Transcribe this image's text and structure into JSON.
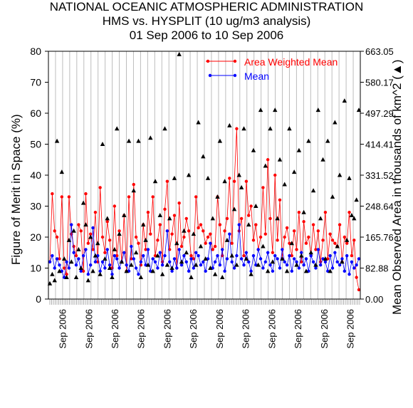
{
  "chart_data": {
    "type": "scatter",
    "title": "NATIONAL OCEANIC ATMOSPHERIC ADMINISTRATION",
    "subtitle": "HMS vs. HYSPLIT (10 ug/m3 analysis)",
    "date_range": "01 Sep 2006 to 10 Sep 2006",
    "ylabel": "Figure of Merit in Space (%)",
    "y2label": "Mean Observed Area in thousands of km^2 (",
    "y2label_marker": "▲",
    "y2label_close": ")",
    "ylim": [
      0,
      80
    ],
    "yticks": [
      0,
      10,
      20,
      30,
      40,
      50,
      60,
      70,
      80
    ],
    "y2ticks": [
      "0.00",
      "82.88",
      "165.76",
      "248.64",
      "331.52",
      "414.41",
      "497.29",
      "580.17",
      "663.05"
    ],
    "xtick_labels": [
      "Sep 2006",
      "Sep 2006",
      "Sep 2006",
      "Sep 2006",
      "Sep 2006",
      "Sep 2006",
      "Sep 2006",
      "Sep 2006",
      "Sep 2006",
      "Sep 2006",
      "Sep 2006",
      "Sep 2006"
    ],
    "grid": "vertical",
    "legend_position": "top-right",
    "series": [
      {
        "name": "Area Weighted Mean",
        "color": "#ff0000",
        "marker": "circle",
        "values": [
          12,
          34,
          22,
          20,
          13,
          33,
          10,
          8,
          33,
          21,
          17,
          14,
          24,
          22,
          9,
          34,
          18,
          21,
          16,
          28,
          12,
          36,
          20,
          15,
          25,
          19,
          10,
          30,
          14,
          22,
          12,
          27,
          9,
          33,
          13,
          37,
          20,
          18,
          11,
          24,
          16,
          28,
          21,
          33,
          14,
          19,
          24,
          12,
          29,
          38,
          16,
          21,
          27,
          10,
          31,
          17,
          20,
          26,
          22,
          14,
          13,
          33,
          23,
          24,
          22,
          18,
          20,
          21,
          16,
          17,
          33,
          24,
          14,
          22,
          26,
          39,
          18,
          38,
          55,
          22,
          26,
          14,
          38,
          27,
          30,
          19,
          24,
          16,
          20,
          36,
          21,
          45,
          26,
          15,
          40,
          19,
          32,
          13,
          20,
          23,
          18,
          14,
          22,
          16,
          28,
          12,
          25,
          18,
          20,
          14,
          24,
          16,
          22,
          12,
          19,
          28,
          13,
          21,
          19,
          18,
          17,
          24,
          12,
          20,
          18,
          28,
          14,
          19,
          7,
          3
        ]
      },
      {
        "name": "Mean",
        "color": "#0000ff",
        "marker": "circle",
        "values": [
          12,
          14,
          10,
          13,
          11,
          9,
          7,
          12,
          10,
          24,
          15,
          11,
          13,
          9,
          14,
          16,
          8,
          11,
          23,
          12,
          14,
          9,
          12,
          10,
          16,
          11,
          8,
          14,
          13,
          10,
          12,
          15,
          11,
          9,
          17,
          13,
          10,
          8,
          12,
          14,
          11,
          16,
          9,
          13,
          12,
          10,
          15,
          11,
          14,
          22,
          12,
          9,
          13,
          10,
          16,
          11,
          14,
          12,
          9,
          13,
          10,
          15,
          14,
          11,
          12,
          9,
          13,
          18,
          10,
          12,
          14,
          11,
          16,
          9,
          13,
          21,
          12,
          10,
          14,
          24,
          13,
          11,
          15,
          12,
          9,
          14,
          11,
          16,
          13,
          10,
          12,
          15,
          11,
          9,
          14,
          13,
          10,
          16,
          12,
          11,
          14,
          9,
          13,
          12,
          10,
          15,
          11,
          13,
          9,
          14,
          12,
          10,
          16,
          11,
          13,
          12,
          9,
          14,
          10,
          15,
          12,
          11,
          13,
          9,
          14,
          8,
          12,
          10,
          11,
          13
        ]
      },
      {
        "name": "Mean Observed Area",
        "color": "#000000",
        "marker": "triangle",
        "axis": "right",
        "values": [
          5,
          8,
          6,
          51,
          9,
          41,
          13,
          7,
          19,
          12,
          22,
          7,
          16,
          10,
          31,
          24,
          6,
          20,
          9,
          14,
          18,
          8,
          50,
          13,
          26,
          10,
          7,
          16,
          55,
          21,
          12,
          27,
          9,
          51,
          11,
          35,
          15,
          51,
          7,
          24,
          19,
          11,
          52,
          9,
          38,
          14,
          27,
          8,
          55,
          11,
          26,
          10,
          39,
          18,
          79,
          12,
          22,
          15,
          40,
          7,
          21,
          11,
          57,
          17,
          46,
          13,
          39,
          10,
          26,
          8,
          33,
          51,
          7,
          38,
          19,
          56,
          14,
          29,
          11,
          40,
          36,
          55,
          13,
          24,
          8,
          48,
          30,
          11,
          61,
          17,
          43,
          9,
          55,
          12,
          61,
          26,
          45,
          13,
          37,
          9,
          55,
          18,
          41,
          11,
          48,
          14,
          28,
          9,
          51,
          15,
          35,
          11,
          61,
          26,
          45,
          13,
          51,
          9,
          33,
          57,
          17,
          40,
          12,
          64,
          19,
          39,
          27,
          26,
          32,
          61
        ]
      }
    ]
  }
}
